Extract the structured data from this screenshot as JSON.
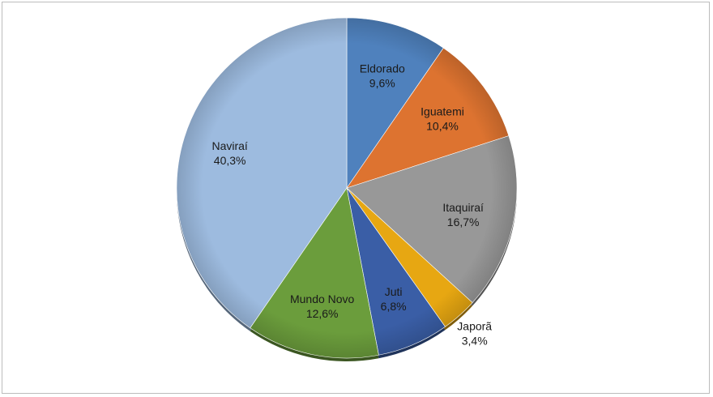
{
  "chart_data": {
    "type": "pie",
    "title": "",
    "start_angle_deg": 0,
    "direction": "clockwise",
    "slices": [
      {
        "name": "Eldorado",
        "value": 9.6,
        "label": "9,6%",
        "color": "#4f81bd",
        "label_outside": false
      },
      {
        "name": "Iguatemi",
        "value": 10.4,
        "label": "10,4%",
        "color": "#dd7330",
        "label_outside": false
      },
      {
        "name": "Itaquiraí",
        "value": 16.7,
        "label": "16,7%",
        "color": "#989898",
        "label_outside": false
      },
      {
        "name": "Japorã",
        "value": 3.4,
        "label": "3,4%",
        "color": "#e7a712",
        "label_outside": true
      },
      {
        "name": "Juti",
        "value": 6.8,
        "label": "6,8%",
        "color": "#3a5ea6",
        "label_outside": false
      },
      {
        "name": "Mundo Novo",
        "value": 12.6,
        "label": "12,6%",
        "color": "#6b9d3c",
        "label_outside": false
      },
      {
        "name": "Naviraí",
        "value": 40.3,
        "label": "40,3%",
        "color": "#9dbbdf",
        "label_outside": false
      }
    ],
    "legend": "none",
    "data_labels": "category name and percentage"
  }
}
